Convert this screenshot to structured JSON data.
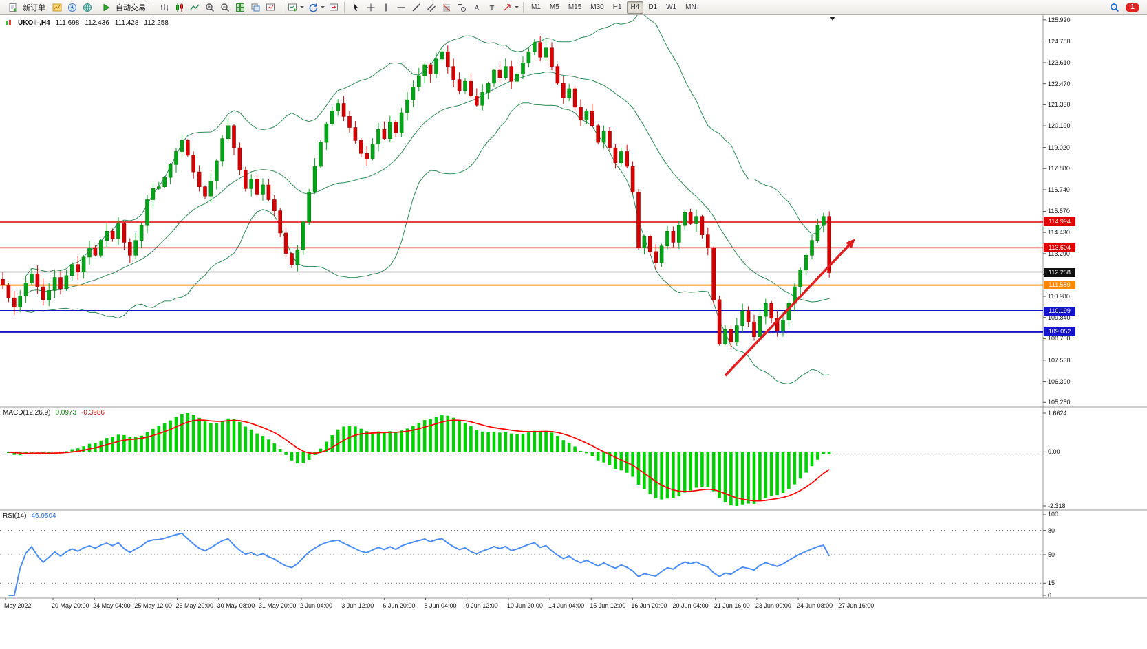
{
  "toolbar": {
    "new_order_label": "新订单",
    "auto_trading_label": "自动交易",
    "timeframes": [
      "M1",
      "M5",
      "M15",
      "M30",
      "H1",
      "H4",
      "D1",
      "W1",
      "MN"
    ],
    "active_timeframe": "H4",
    "notification_count": "1"
  },
  "chart_header": {
    "symbol_period": "UKOil-,H4",
    "open": "111.698",
    "high": "112.436",
    "low": "111.428",
    "close": "112.258"
  },
  "macd_panel": {
    "label": "MACD(12,26,9)",
    "main_value": "0.0973",
    "signal_value": "-0.3986",
    "axis_ticks": [
      "1.6624",
      "0.00",
      "-2.318"
    ]
  },
  "rsi_panel": {
    "label": "RSI(14)",
    "value": "46.9504",
    "axis_ticks": [
      "100",
      "80",
      "50",
      "15",
      "0"
    ]
  },
  "chart_data": {
    "type": "candlestick",
    "symbol": "UKOil-",
    "timeframe": "H4",
    "ylim": [
      105.0,
      126.1
    ],
    "price_ticks": [
      "125.920",
      "124.780",
      "123.610",
      "122.470",
      "121.330",
      "120.190",
      "119.020",
      "117.880",
      "116.740",
      "115.570",
      "114.430",
      "113.290",
      "112.150",
      "110.980",
      "109.840",
      "108.700",
      "107.530",
      "106.390",
      "105.250"
    ],
    "closes": [
      111.6,
      110.9,
      110.4,
      111.0,
      111.7,
      112.2,
      111.5,
      110.8,
      111.3,
      112.0,
      111.4,
      112.1,
      112.7,
      112.3,
      113.1,
      113.6,
      113.2,
      114.0,
      114.5,
      114.1,
      114.9,
      113.9,
      113.2,
      114.0,
      114.8,
      116.2,
      116.8,
      116.9,
      117.4,
      118.1,
      118.8,
      119.4,
      118.6,
      117.7,
      116.9,
      116.4,
      117.2,
      118.3,
      119.5,
      120.2,
      119.0,
      117.8,
      116.8,
      117.3,
      116.5,
      117.0,
      116.2,
      115.6,
      114.4,
      113.3,
      112.7,
      113.5,
      115.0,
      116.6,
      118.0,
      119.3,
      120.3,
      121.0,
      121.4,
      120.7,
      120.1,
      119.4,
      118.7,
      118.4,
      119.2,
      120.0,
      119.5,
      120.4,
      119.8,
      120.9,
      121.6,
      122.3,
      122.9,
      123.5,
      123.0,
      123.8,
      124.2,
      123.4,
      122.7,
      122.1,
      122.6,
      121.8,
      121.3,
      122.0,
      122.5,
      123.2,
      122.8,
      123.4,
      122.6,
      123.0,
      123.6,
      124.2,
      124.7,
      123.9,
      124.4,
      123.4,
      122.5,
      121.7,
      122.2,
      121.2,
      120.5,
      121.0,
      120.2,
      119.3,
      119.9,
      119.0,
      118.2,
      118.8,
      118.0,
      116.6,
      113.6,
      114.2,
      113.4,
      112.8,
      113.7,
      114.5,
      113.9,
      114.8,
      115.5,
      114.9,
      115.3,
      114.3,
      113.6,
      110.8,
      108.4,
      109.2,
      108.5,
      109.4,
      110.2,
      109.6,
      108.8,
      109.9,
      110.6,
      109.8,
      109.1,
      109.7,
      110.6,
      111.5,
      112.4,
      113.2,
      114.0,
      114.8,
      115.3,
      112.258
    ],
    "last_ohlc": {
      "open": 111.698,
      "high": 112.436,
      "low": 111.428,
      "close": 112.258
    },
    "candle_up_color": "#00a31a",
    "candle_down_color": "#d60000",
    "bollinger": {
      "period": 20,
      "deviation": 2,
      "color": "#2e8b57"
    },
    "horizontal_lines": [
      {
        "price": 114.994,
        "color": "#e00000",
        "width": 1.5,
        "tag": "114.994",
        "tag_color": "#e00000"
      },
      {
        "price": 113.604,
        "color": "#e00000",
        "width": 1.5,
        "tag": "113.604",
        "tag_color": "#e00000"
      },
      {
        "price": 112.3,
        "color": "#111111",
        "width": 1.2,
        "tag": "",
        "tag_color": ""
      },
      {
        "price": 111.589,
        "color": "#ff8a00",
        "width": 2,
        "tag": "111.589",
        "tag_color": "#ff8a00"
      },
      {
        "price": 110.199,
        "color": "#1414c8",
        "width": 2,
        "tag": "110.199",
        "tag_color": "#1414c8"
      },
      {
        "price": 109.052,
        "color": "#1414c8",
        "width": 2,
        "tag": "109.052",
        "tag_color": "#1414c8"
      }
    ],
    "current_price_tag": {
      "value": "112.258",
      "bg": "#101010"
    },
    "trend_arrow": {
      "from_candle": 125,
      "from_price": 106.7,
      "to_candle": 147.5,
      "to_price": 114.1,
      "color": "#e02020"
    },
    "macd": {
      "fast": 12,
      "slow": 26,
      "signal": 9,
      "top_value": 1.6624,
      "bottom_value": -2.318,
      "bar_color": "#00cf00",
      "signal_color": "#ff0000"
    },
    "rsi": {
      "period": 14,
      "levels": [
        80,
        50,
        15
      ],
      "range": [
        0,
        100
      ],
      "line_color": "#4b8df0"
    },
    "time_labels": [
      "May 2022",
      "20 May 20:00",
      "24 May 04:00",
      "25 May 12:00",
      "26 May 20:00",
      "30 May 08:00",
      "31 May 20:00",
      "2 Jun 04:00",
      "3 Jun 12:00",
      "6 Jun 20:00",
      "8 Jun 04:00",
      "9 Jun 12:00",
      "10 Jun 20:00",
      "14 Jun 04:00",
      "15 Jun 12:00",
      "16 Jun 20:00",
      "20 Jun 04:00",
      "21 Jun 16:00",
      "23 Jun 00:00",
      "24 Jun 08:00",
      "27 Jun 16:00"
    ]
  }
}
